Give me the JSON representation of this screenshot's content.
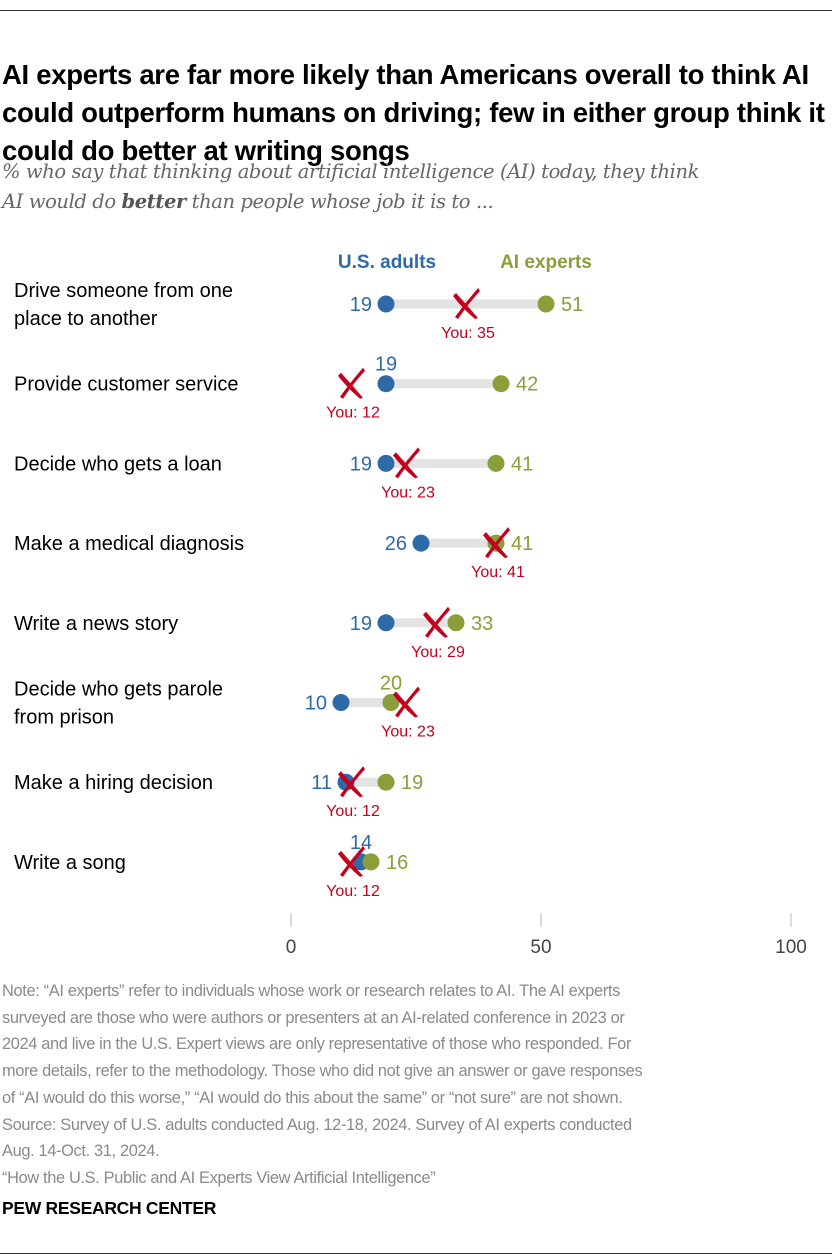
{
  "title": "AI experts are far more likely than Americans overall to think AI could outperform humans on driving; few in either group think it could do better at writing songs",
  "subtitle": {
    "line1": "% who say that thinking about artificial intelligence (AI) today, they think",
    "line2_pre": "AI would do ",
    "line2_bold": "better",
    "line2_post": " than people whose job it is to ..."
  },
  "colors": {
    "us_adults": "#2e6aa7",
    "ai_experts": "#8a9e3a",
    "you": "#c4001d",
    "connector": "#e3e3e3"
  },
  "chart_data": {
    "type": "dot-plot",
    "title": "AI experts are far more likely than Americans overall to think AI could outperform humans on driving; few in either group think it could do better at writing songs",
    "xlabel": "",
    "ylabel": "",
    "xlim": [
      0,
      100
    ],
    "xticks": [
      0,
      50,
      100
    ],
    "grid": false,
    "legend": [
      "U.S. adults",
      "AI experts"
    ],
    "legend_position": "top",
    "you_prefix": "You: ",
    "categories": [
      [
        "Drive someone from one",
        "place to another"
      ],
      [
        "Provide customer service"
      ],
      [
        "Decide who gets a loan"
      ],
      [
        "Make a medical diagnosis"
      ],
      [
        "Write a news story"
      ],
      [
        "Decide who gets parole",
        "from prison"
      ],
      [
        "Make a hiring decision"
      ],
      [
        "Write a song"
      ]
    ],
    "series": [
      {
        "name": "U.S. adults",
        "values": [
          19,
          19,
          19,
          26,
          19,
          10,
          11,
          14
        ]
      },
      {
        "name": "AI experts",
        "values": [
          51,
          42,
          41,
          41,
          33,
          20,
          19,
          16
        ]
      },
      {
        "name": "You",
        "values": [
          35,
          12,
          23,
          41,
          29,
          23,
          12,
          12
        ]
      }
    ]
  },
  "notes": [
    "Note: “AI experts” refer to individuals whose work or research relates to AI. The AI experts",
    "surveyed are those who were authors or presenters at an AI-related conference in 2023 or",
    "2024 and live in the U.S. Expert views are only representative of those who responded. For",
    "more details, refer to the methodology. Those who did not give an answer or gave responses",
    "of “AI would do this worse,” “AI would do this about the same” or “not sure” are not shown.",
    "Source: Survey of U.S. adults conducted Aug. 12-18, 2024. Survey of AI experts conducted",
    "Aug. 14-Oct. 31, 2024.",
    "“How the U.S. Public and AI Experts View Artificial Intelligence”"
  ],
  "brand": "PEW RESEARCH CENTER"
}
